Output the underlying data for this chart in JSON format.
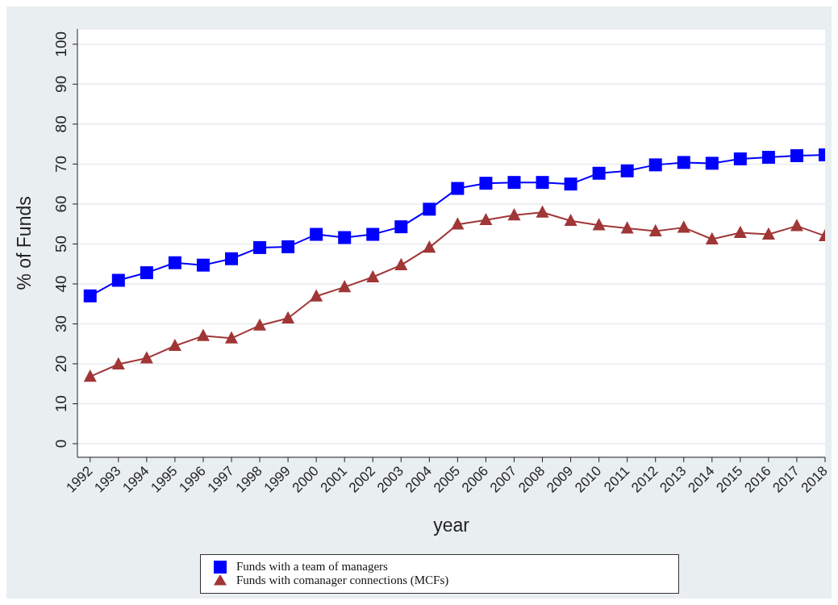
{
  "chart_data": {
    "type": "line",
    "xlabel": "year",
    "ylabel": "% of Funds",
    "categories": [
      "1992",
      "1993",
      "1994",
      "1995",
      "1996",
      "1997",
      "1998",
      "1999",
      "2000",
      "2001",
      "2002",
      "2003",
      "2004",
      "2005",
      "2006",
      "2007",
      "2008",
      "2009",
      "2010",
      "2011",
      "2012",
      "2013",
      "2014",
      "2015",
      "2016",
      "2017",
      "2018"
    ],
    "series": [
      {
        "name": "Funds with a team of managers",
        "color": "#0000ff",
        "marker": "square",
        "values": [
          37,
          40.9,
          42.8,
          45.3,
          44.7,
          46.3,
          49.1,
          49.3,
          52.4,
          51.6,
          52.4,
          54.3,
          58.7,
          63.9,
          65.2,
          65.4,
          65.4,
          65,
          67.7,
          68.3,
          69.8,
          70.4,
          70.2,
          71.3,
          71.7,
          72.1,
          72.3
        ]
      },
      {
        "name": "Funds with comanager connections (MCFs)",
        "color": "#a03636",
        "marker": "triangle",
        "values": [
          16.8,
          19.9,
          21.4,
          24.5,
          27,
          26.4,
          29.6,
          31.4,
          36.9,
          39.2,
          41.7,
          44.7,
          49.1,
          54.9,
          56,
          57.2,
          57.9,
          55.8,
          54.7,
          53.9,
          53.2,
          54.1,
          51.2,
          52.8,
          52.4,
          54.5,
          52
        ]
      }
    ],
    "ylim": [
      -3.4,
      103.8
    ],
    "yticks": [
      0,
      10,
      20,
      30,
      40,
      50,
      60,
      70,
      80,
      90,
      100
    ],
    "grid": "y",
    "legend": "bottom",
    "line_style": "solid"
  }
}
